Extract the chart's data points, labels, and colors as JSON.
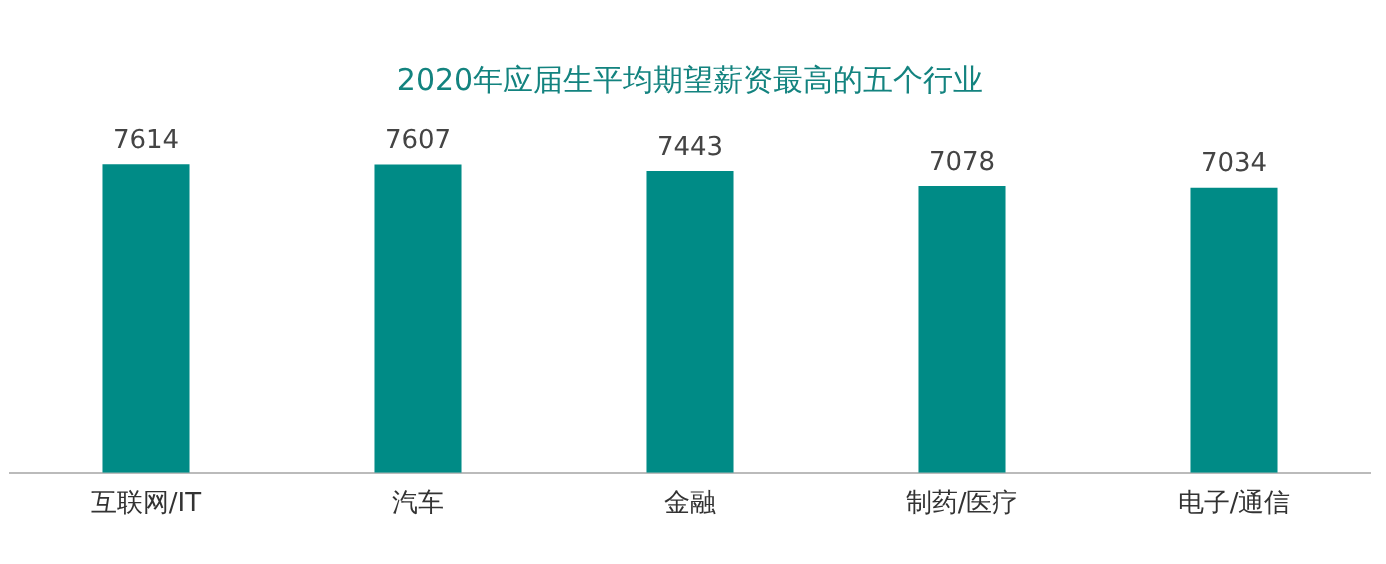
{
  "chart_data": {
    "type": "bar",
    "title": "2020年应届生平均期望薪资最高的五个行业",
    "categories": [
      "互联网/IT",
      "汽车",
      "金融",
      "制药/医疗",
      "电子/通信"
    ],
    "values": [
      7614,
      7607,
      7443,
      7078,
      7034
    ],
    "color": "#008b86",
    "data_labels": true,
    "grid": false,
    "legend": false,
    "tick_labels": "x"
  }
}
